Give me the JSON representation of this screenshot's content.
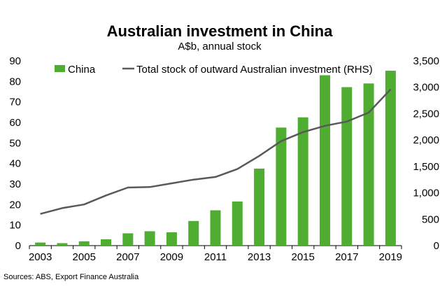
{
  "chart_data": {
    "type": "bar",
    "title": "Australian investment in China",
    "subtitle": "A$b, annual stock",
    "source": "Sources: ABS, Export Finance Australia",
    "categories": [
      "2003",
      "2004",
      "2005",
      "2006",
      "2007",
      "2008",
      "2009",
      "2010",
      "2011",
      "2012",
      "2013",
      "2014",
      "2015",
      "2016",
      "2017",
      "2018",
      "2019"
    ],
    "x_tick_labels": [
      "2003",
      "2005",
      "2007",
      "2009",
      "2011",
      "2013",
      "2015",
      "2017",
      "2019"
    ],
    "series": [
      {
        "name": "China",
        "type": "bar",
        "axis": "left",
        "color": "#4fad32",
        "values": [
          1.5,
          1.2,
          2.1,
          3.1,
          6.0,
          7.0,
          6.5,
          12.0,
          17.2,
          21.5,
          37.5,
          57.5,
          62.5,
          83.0,
          77.2,
          79.0,
          85.2
        ]
      },
      {
        "name": "Total stock of outward Australian investment (RHS)",
        "type": "line",
        "axis": "right",
        "color": "#595959",
        "values": [
          600,
          710,
          780,
          950,
          1100,
          1110,
          1180,
          1250,
          1300,
          1450,
          1700,
          1980,
          2150,
          2270,
          2350,
          2520,
          2960
        ]
      }
    ],
    "y_left": {
      "min": 0,
      "max": 90,
      "step": 10,
      "ticks": [
        "0",
        "10",
        "20",
        "30",
        "40",
        "50",
        "60",
        "70",
        "80",
        "90"
      ]
    },
    "y_right": {
      "min": 0,
      "max": 3500,
      "step": 500,
      "ticks": [
        "0",
        "500",
        "1,000",
        "1,500",
        "2,000",
        "2,500",
        "3,000",
        "3,500"
      ]
    },
    "grid": false,
    "legend_position": "top"
  }
}
